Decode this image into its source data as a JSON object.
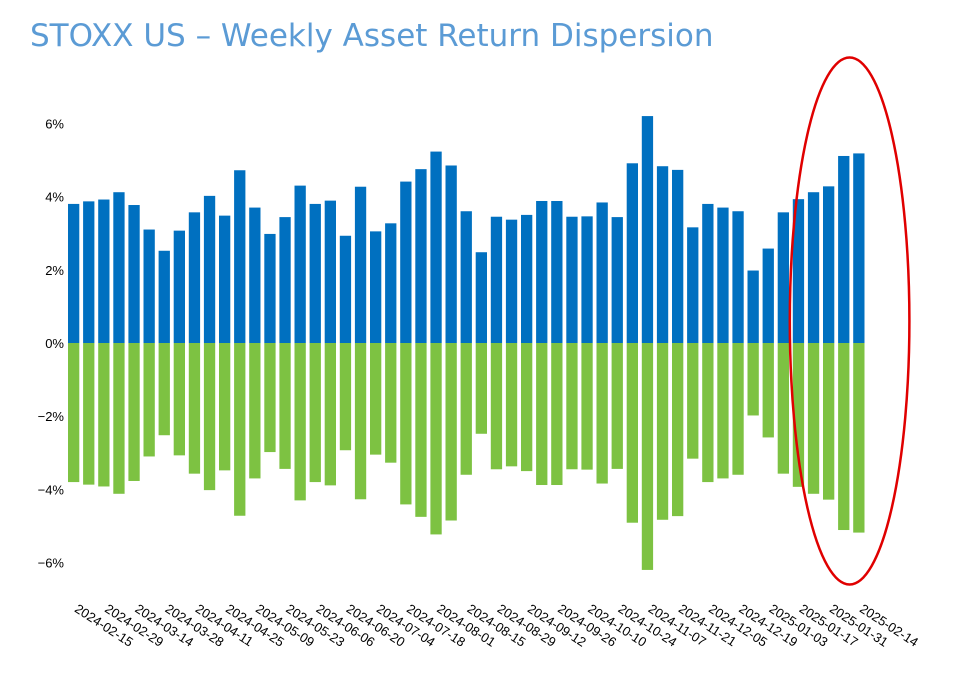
{
  "chart_data": {
    "type": "bar",
    "title": "STOXX US – Weekly Asset Return Dispersion",
    "xlabel": "",
    "ylabel": "",
    "ylim": [
      -7,
      7
    ],
    "yticks": [
      -6,
      -4,
      -2,
      0,
      2,
      4,
      6
    ],
    "ytick_labels": [
      "−6%",
      "−4%",
      "−2%",
      "0%",
      "2%",
      "4%",
      "6%"
    ],
    "grid": false,
    "legend": "none",
    "x_labels": [
      "2024-02-15",
      "2024-02-29",
      "2024-03-14",
      "2024-03-28",
      "2024-04-11",
      "2024-04-25",
      "2024-05-09",
      "2024-05-23",
      "2024-06-06",
      "2024-06-20",
      "2024-07-04",
      "2024-07-18",
      "2024-08-01",
      "2024-08-15",
      "2024-08-29",
      "2024-09-12",
      "2024-09-26",
      "2024-10-10",
      "2024-10-24",
      "2024-11-07",
      "2024-11-21",
      "2024-12-05",
      "2024-12-19",
      "2025-01-03",
      "2025-01-17",
      "2025-01-31",
      "2025-02-14"
    ],
    "categories": [
      "2024-02-15",
      "2024-02-22",
      "2024-02-29",
      "2024-03-07",
      "2024-03-14",
      "2024-03-21",
      "2024-03-28",
      "2024-04-04",
      "2024-04-11",
      "2024-04-18",
      "2024-04-25",
      "2024-05-02",
      "2024-05-09",
      "2024-05-16",
      "2024-05-23",
      "2024-05-30",
      "2024-06-06",
      "2024-06-13",
      "2024-06-20",
      "2024-06-27",
      "2024-07-04",
      "2024-07-11",
      "2024-07-18",
      "2024-07-25",
      "2024-08-01",
      "2024-08-08",
      "2024-08-15",
      "2024-08-22",
      "2024-08-29",
      "2024-09-05",
      "2024-09-12",
      "2024-09-19",
      "2024-09-26",
      "2024-10-03",
      "2024-10-10",
      "2024-10-17",
      "2024-10-24",
      "2024-10-31",
      "2024-11-07",
      "2024-11-14",
      "2024-11-21",
      "2024-11-28",
      "2024-12-05",
      "2024-12-12",
      "2024-12-19",
      "2024-12-26",
      "2025-01-03",
      "2025-01-10",
      "2025-01-17",
      "2025-01-24",
      "2025-01-31",
      "2025-02-07",
      "2025-02-14"
    ],
    "series": [
      {
        "color": "#0070c0",
        "values": [
          3.8,
          3.87,
          3.92,
          4.12,
          3.77,
          3.1,
          2.52,
          3.07,
          3.57,
          4.02,
          3.48,
          4.72,
          3.7,
          2.98,
          3.44,
          4.3,
          3.8,
          3.89,
          2.93,
          4.27,
          3.05,
          3.27,
          4.41,
          4.75,
          5.23,
          4.85,
          3.6,
          2.48,
          3.45,
          3.37,
          3.5,
          3.88,
          3.88,
          3.45,
          3.46,
          3.84,
          3.44,
          4.91,
          6.2,
          4.83,
          4.73,
          3.16,
          3.8,
          3.7,
          3.6,
          1.98,
          2.58,
          3.57,
          3.93,
          4.12,
          4.28,
          5.11,
          5.18
        ]
      },
      {
        "color": "#7dc242",
        "values": [
          -3.8,
          -3.87,
          -3.92,
          -4.12,
          -3.77,
          -3.1,
          -2.52,
          -3.07,
          -3.57,
          -4.02,
          -3.48,
          -4.72,
          -3.7,
          -2.98,
          -3.44,
          -4.3,
          -3.8,
          -3.89,
          -2.93,
          -4.27,
          -3.05,
          -3.27,
          -4.41,
          -4.75,
          -5.23,
          -4.85,
          -3.6,
          -2.48,
          -3.45,
          -3.37,
          -3.5,
          -3.88,
          -3.88,
          -3.45,
          -3.46,
          -3.84,
          -3.44,
          -4.91,
          -6.2,
          -4.83,
          -4.73,
          -3.16,
          -3.8,
          -3.7,
          -3.6,
          -1.98,
          -2.58,
          -3.57,
          -3.93,
          -4.12,
          -4.28,
          -5.11,
          -5.18
        ]
      }
    ],
    "annotations": [
      {
        "type": "ellipse",
        "color": "#e00000",
        "x_range": [
          "2025-01-17",
          "2025-02-14"
        ],
        "y_range": [
          -6.6,
          7.8
        ]
      }
    ]
  }
}
